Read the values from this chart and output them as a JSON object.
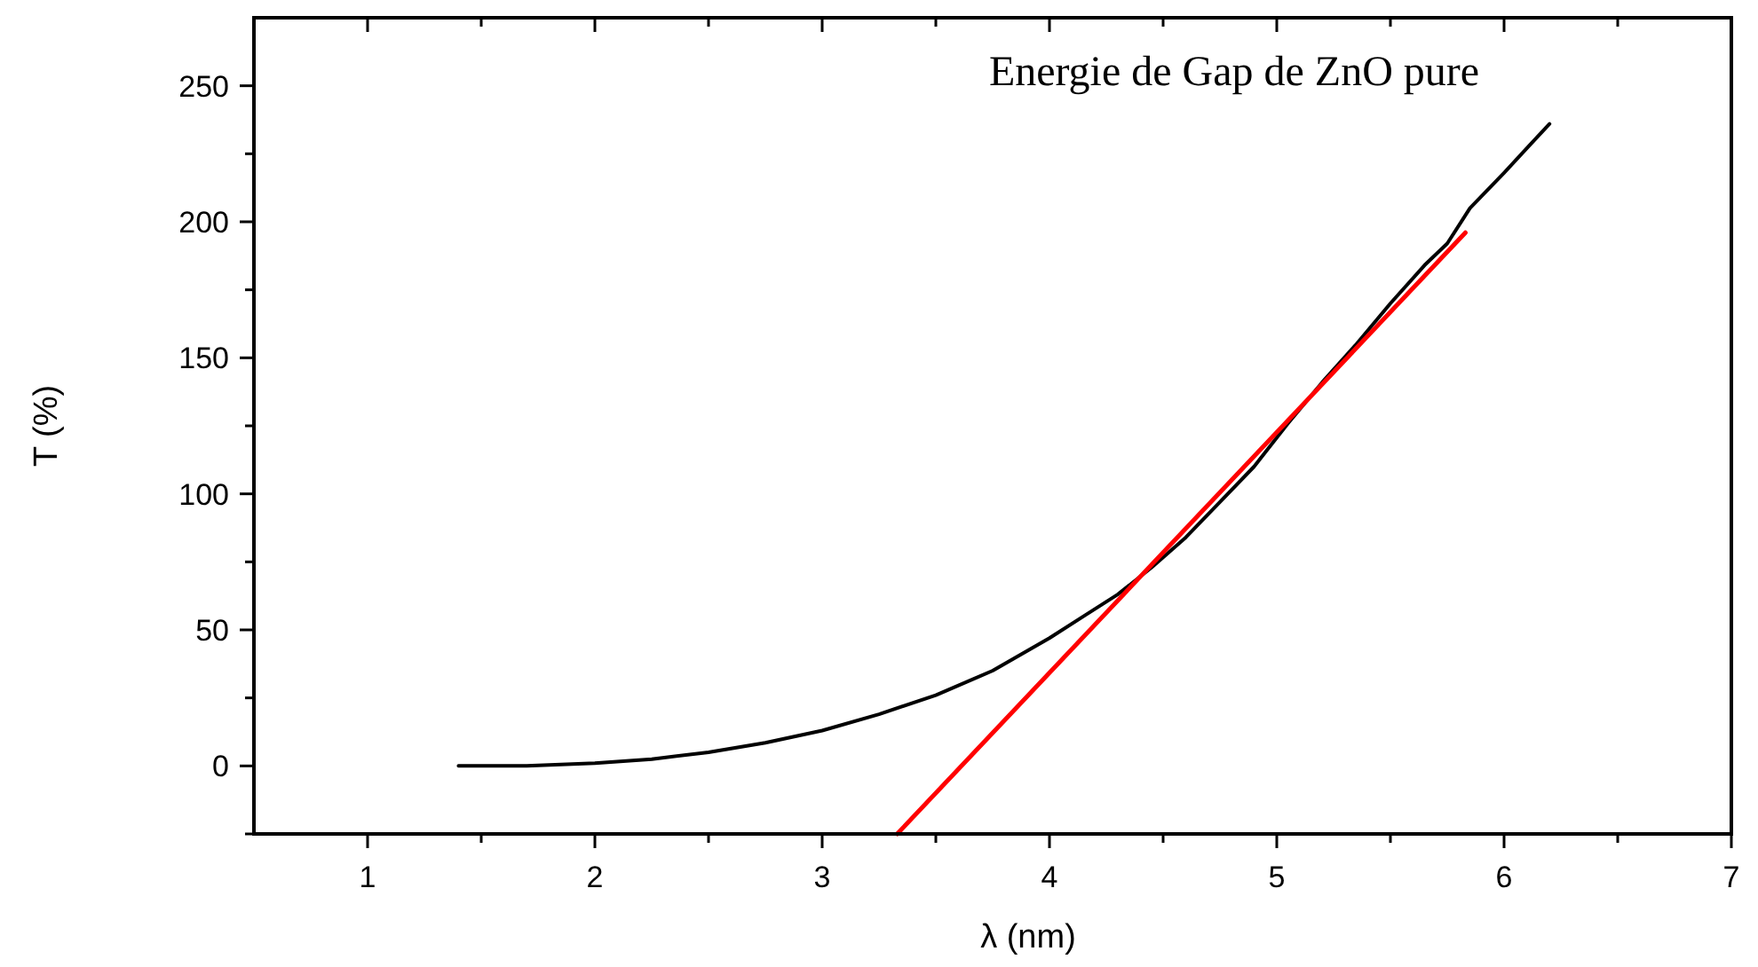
{
  "chart_data": {
    "type": "line",
    "title": "Energie de Gap de ZnO pure",
    "xlabel": "λ (nm)",
    "ylabel": "T (%)",
    "xlim": [
      0.5,
      7
    ],
    "ylim": [
      -25,
      275
    ],
    "xticks": [
      1,
      {
        "value": 1.5,
        "label": null
      },
      2,
      {
        "value": 2.5,
        "label": null
      },
      3,
      {
        "value": 3.5,
        "label": null
      },
      4,
      {
        "value": 4.5,
        "label": null
      },
      5,
      {
        "value": 5.5,
        "label": null
      },
      6,
      {
        "value": 6.5,
        "label": null
      },
      7
    ],
    "yticks": [
      {
        "value": -25,
        "label": null
      },
      0,
      {
        "value": 25,
        "label": null
      },
      50,
      {
        "value": 75,
        "label": null
      },
      100,
      {
        "value": 125,
        "label": null
      },
      150,
      {
        "value": 175,
        "label": null
      },
      200,
      {
        "value": 225,
        "label": null
      },
      250
    ],
    "grid": false,
    "line_style": "solid",
    "series": [
      {
        "color": "#000000",
        "x": [
          1.4,
          1.7,
          2,
          2.25,
          2.5,
          2.75,
          3,
          3.25,
          3.5,
          3.75,
          4,
          4.15,
          4.3,
          4.45,
          4.6,
          4.75,
          4.9,
          5.05,
          5.2,
          5.35,
          5.5,
          5.65,
          5.75,
          5.85,
          6,
          6.1,
          6.2
        ],
        "values": [
          0,
          0,
          1,
          2.5,
          5,
          8.5,
          13,
          19,
          26,
          35,
          47,
          55,
          63,
          73,
          84,
          97,
          110,
          126,
          141,
          155,
          170,
          184,
          192,
          205,
          218,
          227,
          236
        ]
      },
      {
        "type": "line",
        "color": "#ff0000",
        "x": [
          3.33,
          5.83
        ],
        "values": [
          -25,
          196
        ]
      }
    ]
  }
}
